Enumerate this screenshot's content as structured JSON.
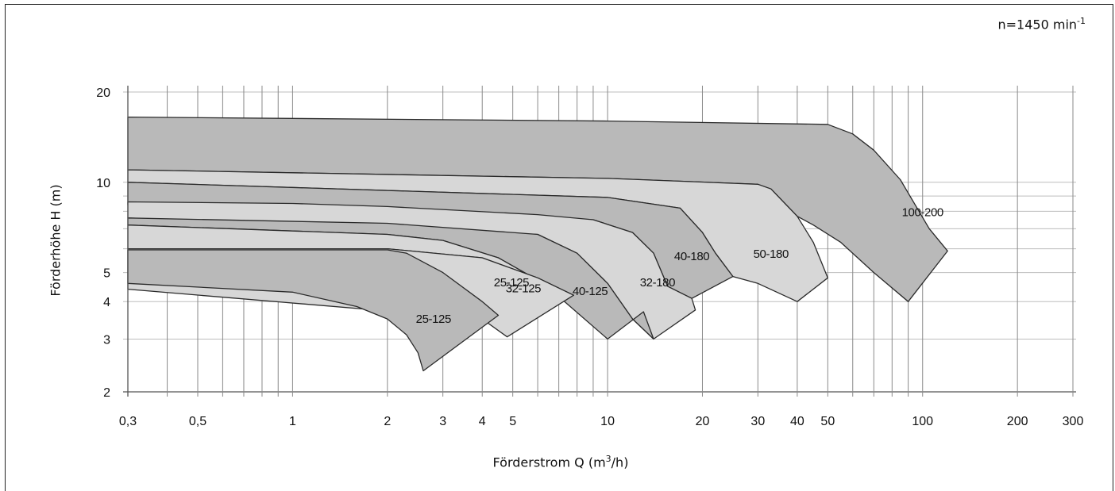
{
  "chart_data": {
    "type": "area",
    "title": "",
    "speed_label": {
      "prefix": "n=1450 min",
      "exponent": "-1"
    },
    "xlabel": {
      "text": "Förderstrom Q (m",
      "exponent": "3",
      "suffix": "/h)"
    },
    "ylabel": "Förderhöhe H (m)",
    "x_scale": "log",
    "y_scale": "log",
    "xlim": [
      0.3,
      300
    ],
    "ylim": [
      2,
      20
    ],
    "x_ticks": [
      {
        "value": 0.3,
        "label": "0,3"
      },
      {
        "value": 0.5,
        "label": "0,5"
      },
      {
        "value": 1,
        "label": "1"
      },
      {
        "value": 2,
        "label": "2"
      },
      {
        "value": 3,
        "label": "3"
      },
      {
        "value": 4,
        "label": "4"
      },
      {
        "value": 5,
        "label": "5"
      },
      {
        "value": 10,
        "label": "10"
      },
      {
        "value": 20,
        "label": "20"
      },
      {
        "value": 30,
        "label": "30"
      },
      {
        "value": 40,
        "label": "40"
      },
      {
        "value": 50,
        "label": "50"
      },
      {
        "value": 100,
        "label": "100"
      },
      {
        "value": 200,
        "label": "200"
      },
      {
        "value": 300,
        "label": "300"
      }
    ],
    "x_grid": [
      0.3,
      0.4,
      0.5,
      0.6,
      0.7,
      0.8,
      0.9,
      1,
      2,
      3,
      4,
      5,
      6,
      7,
      8,
      9,
      10,
      20,
      30,
      40,
      50,
      60,
      70,
      80,
      90,
      100,
      200,
      300
    ],
    "y_ticks": [
      {
        "value": 2,
        "label": "2"
      },
      {
        "value": 3,
        "label": "3"
      },
      {
        "value": 4,
        "label": "4"
      },
      {
        "value": 5,
        "label": "5"
      },
      {
        "value": 10,
        "label": "10"
      },
      {
        "value": 20,
        "label": "20"
      }
    ],
    "y_grid": [
      2,
      3,
      4,
      5,
      6,
      7,
      8,
      9,
      10,
      20
    ],
    "colors": {
      "dark": "#b9b9b9",
      "light": "#d7d7d7",
      "outline": "#2a2a2a",
      "grid": "#bdbdbd"
    },
    "series": [
      {
        "name": "100-200",
        "shade": "dark",
        "label_at": [
          100,
          7.7
        ],
        "points": [
          [
            0.3,
            16.5
          ],
          [
            10,
            16.0
          ],
          [
            50,
            15.6
          ],
          [
            60,
            14.5
          ],
          [
            70,
            12.8
          ],
          [
            85,
            10.2
          ],
          [
            105,
            7.0
          ],
          [
            120,
            5.9
          ],
          [
            90,
            4.0
          ],
          [
            70,
            5.0
          ],
          [
            55,
            6.3
          ],
          [
            45,
            7.2
          ],
          [
            40,
            7.7
          ],
          [
            33,
            9.5
          ],
          [
            30,
            9.85
          ],
          [
            10,
            10.3
          ],
          [
            0.3,
            11.0
          ]
        ]
      },
      {
        "name": "50-180",
        "shade": "light",
        "label_at": [
          33,
          5.6
        ],
        "points": [
          [
            0.3,
            11.0
          ],
          [
            10,
            10.3
          ],
          [
            30,
            9.85
          ],
          [
            33,
            9.5
          ],
          [
            40,
            7.7
          ],
          [
            45,
            6.3
          ],
          [
            50,
            4.8
          ],
          [
            40,
            4.0
          ],
          [
            30,
            4.6
          ],
          [
            25,
            4.85
          ],
          [
            22,
            5.8
          ],
          [
            20,
            6.8
          ],
          [
            17,
            8.2
          ],
          [
            10,
            8.9
          ],
          [
            0.3,
            10.0
          ]
        ]
      },
      {
        "name": "40-180",
        "shade": "dark",
        "label_at": [
          18.5,
          5.5
        ],
        "points": [
          [
            0.3,
            10.0
          ],
          [
            10,
            8.9
          ],
          [
            17,
            8.2
          ],
          [
            20,
            6.8
          ],
          [
            22,
            5.8
          ],
          [
            25,
            4.85
          ],
          [
            18.5,
            4.1
          ],
          [
            15.5,
            4.5
          ],
          [
            14,
            5.8
          ],
          [
            12,
            6.8
          ],
          [
            9,
            7.5
          ],
          [
            0.3,
            8.4
          ]
        ]
      },
      {
        "name": "32-180",
        "shade": "light",
        "label_at": [
          14.4,
          4.5
        ],
        "points": [
          [
            0.3,
            8.6
          ],
          [
            1,
            8.5
          ],
          [
            2,
            8.3
          ],
          [
            6,
            7.8
          ],
          [
            9,
            7.5
          ],
          [
            12,
            6.8
          ],
          [
            14,
            5.8
          ],
          [
            15.5,
            4.5
          ],
          [
            18.5,
            4.1
          ],
          [
            19,
            3.75
          ],
          [
            14,
            3.0
          ],
          [
            12,
            3.5
          ],
          [
            10,
            4.6
          ],
          [
            8,
            5.8
          ],
          [
            6,
            6.7
          ],
          [
            0.3,
            7.6
          ]
        ]
      },
      {
        "name": "40-125",
        "shade": "dark",
        "label_at": [
          8.8,
          4.2
        ],
        "points": [
          [
            0.3,
            7.6
          ],
          [
            2,
            7.3
          ],
          [
            6,
            6.7
          ],
          [
            8,
            5.8
          ],
          [
            10,
            4.6
          ],
          [
            12,
            3.5
          ],
          [
            14,
            3.0
          ],
          [
            13,
            3.7
          ],
          [
            10,
            3.0
          ],
          [
            7.2,
            4.05
          ],
          [
            6.5,
            4.5
          ],
          [
            4.5,
            5.6
          ],
          [
            3,
            6.4
          ],
          [
            2,
            6.7
          ],
          [
            0.3,
            7.2
          ]
        ]
      },
      {
        "name": "32-125",
        "shade": "light",
        "label_at": [
          5.4,
          4.3
        ],
        "points": [
          [
            0.3,
            7.2
          ],
          [
            2,
            6.7
          ],
          [
            3,
            6.4
          ],
          [
            4.5,
            5.6
          ],
          [
            6.5,
            4.5
          ],
          [
            7.2,
            4.05
          ],
          [
            7.8,
            4.2
          ],
          [
            6,
            4.8
          ],
          [
            4,
            5.6
          ],
          [
            2,
            6.0
          ],
          [
            0.3,
            6.0
          ]
        ]
      },
      {
        "name": "25-125",
        "shade": "light",
        "label_at": [
          4.95,
          4.5
        ],
        "points": [
          [
            0.3,
            6.0
          ],
          [
            2,
            6.0
          ],
          [
            4,
            5.6
          ],
          [
            6,
            4.8
          ],
          [
            7.8,
            4.2
          ],
          [
            4.8,
            3.05
          ],
          [
            4.0,
            3.5
          ],
          [
            0.3,
            4.4
          ]
        ]
      },
      {
        "name": "25-125",
        "shade": "dark",
        "label_at": [
          2.8,
          3.4
        ],
        "points": [
          [
            0.3,
            4.6
          ],
          [
            1,
            4.3
          ],
          [
            1.6,
            3.85
          ],
          [
            2,
            3.5
          ],
          [
            2.3,
            3.1
          ],
          [
            2.5,
            2.7
          ],
          [
            2.6,
            2.35
          ],
          [
            4.5,
            3.6
          ],
          [
            4.0,
            4.0
          ],
          [
            3,
            5.0
          ],
          [
            2.3,
            5.8
          ],
          [
            2,
            5.95
          ],
          [
            0.3,
            5.95
          ]
        ]
      }
    ]
  }
}
